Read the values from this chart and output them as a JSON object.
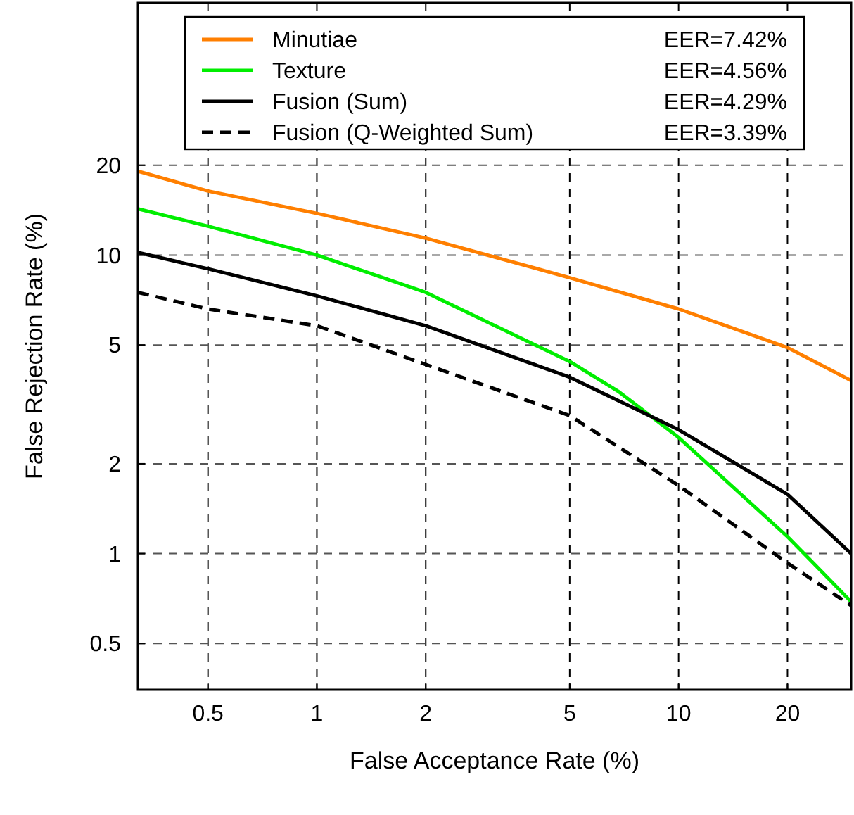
{
  "chart_data": {
    "type": "line",
    "xlabel": "False Acceptance Rate (%)",
    "ylabel": "False Rejection Rate (%)",
    "log": "xy",
    "grid": true,
    "legend": "top",
    "line_style": "solid",
    "xlim": [
      0.32,
      30
    ],
    "ylim": [
      0.35,
      70
    ],
    "xticks": [
      0.5,
      1,
      2,
      5,
      10,
      20
    ],
    "yticks": [
      0.5,
      1,
      2,
      5,
      10,
      20
    ],
    "annotations": [
      "EER=7.42%",
      "EER=4.56%",
      "EER=4.29%",
      "EER=3.39%"
    ],
    "x": [
      0.32,
      0.5,
      1,
      2,
      5,
      10,
      20,
      30
    ],
    "series": [
      {
        "name": "Minutiae",
        "color": "#ff7f00",
        "values": [
          19.1,
          16.4,
          13.8,
          11.4,
          8.4,
          6.6,
          4.9,
          3.8
        ]
      },
      {
        "name": "Texture",
        "color": "#00ee00",
        "x": [
          0.32,
          0.5,
          1,
          2,
          5,
          6.8,
          10,
          20,
          30
        ],
        "values": [
          14.3,
          12.5,
          10,
          7.5,
          4.4,
          3.5,
          2.45,
          1.14,
          0.69
        ]
      },
      {
        "name": "Fusion (Sum)",
        "color": "#000000",
        "values": [
          10.2,
          9.0,
          7.3,
          5.8,
          3.9,
          2.6,
          1.58,
          1.0
        ]
      },
      {
        "name": "Fusion (Q-Weighted Sum)",
        "color": "#000000",
        "line_style": "dashed",
        "values": [
          7.5,
          6.6,
          5.8,
          4.3,
          2.9,
          1.69,
          0.93,
          0.67
        ]
      }
    ]
  }
}
